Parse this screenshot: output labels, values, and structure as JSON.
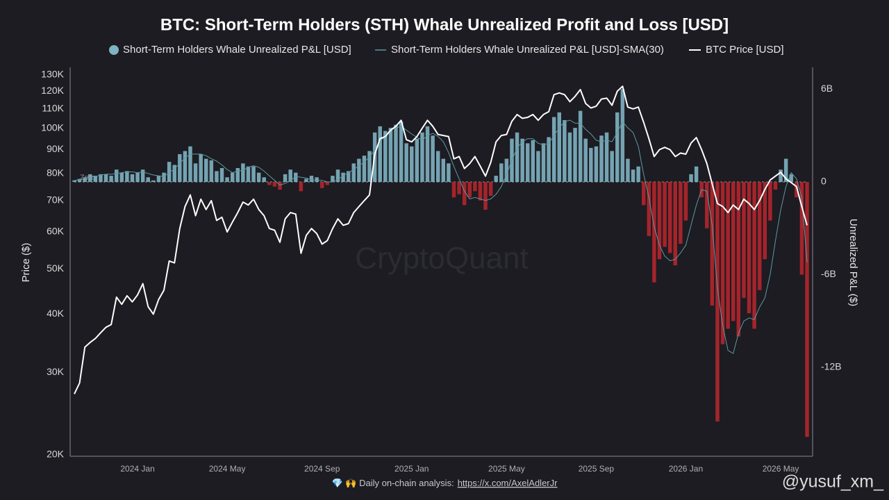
{
  "chart_data": {
    "type": "combo",
    "title": "BTC: Short-Term Holders (STH) Whale Unrealized Profit and Loss [USD]",
    "y_label": "Price ($)",
    "y2_label": "Unrealized P&L ($)",
    "zero_label": "Zero",
    "watermark": "CryptoQuant",
    "footer_text": "💎 🙌 Daily on-chain analysis:",
    "footer_link": "https://x.com/AxelAdlerJr",
    "overlay_handle": "@yusuf_xm_",
    "ylog": true,
    "grid": false,
    "legend": "top",
    "ylim": [
      20000,
      130000
    ],
    "yticks": [
      {
        "value": 20000,
        "label": "20K"
      },
      {
        "value": 30000,
        "label": "30K"
      },
      {
        "value": 40000,
        "label": "40K"
      },
      {
        "value": 50000,
        "label": "50K"
      },
      {
        "value": 60000,
        "label": "60K"
      },
      {
        "value": 70000,
        "label": "70K"
      },
      {
        "value": 80000,
        "label": "80K"
      },
      {
        "value": 90000,
        "label": "90K"
      },
      {
        "value": 100000,
        "label": "100K"
      },
      {
        "value": 110000,
        "label": "110K"
      },
      {
        "value": 120000,
        "label": "120K"
      },
      {
        "value": 130000,
        "label": "130K"
      }
    ],
    "y2lim": [
      -17.66,
      6.92
    ],
    "y2ticks": [
      {
        "value": 6,
        "label": "6B"
      },
      0,
      {
        "value": -6,
        "label": "-6B"
      },
      {
        "value": -12,
        "label": "-12B"
      }
    ],
    "categories": [
      null,
      null,
      null,
      null,
      null,
      null,
      null,
      null,
      null,
      null,
      null,
      null,
      "2024 Jan",
      null,
      null,
      null,
      null,
      null,
      null,
      null,
      null,
      null,
      null,
      null,
      null,
      null,
      null,
      null,
      null,
      "2024 May",
      null,
      null,
      null,
      null,
      null,
      null,
      null,
      null,
      null,
      null,
      null,
      null,
      null,
      null,
      null,
      null,
      null,
      "2024 Sep",
      null,
      null,
      null,
      null,
      null,
      null,
      null,
      null,
      null,
      null,
      null,
      null,
      null,
      null,
      null,
      null,
      "2025 Jan",
      null,
      null,
      null,
      null,
      null,
      null,
      null,
      null,
      null,
      null,
      null,
      null,
      null,
      null,
      null,
      null,
      null,
      "2025 May",
      null,
      null,
      null,
      null,
      null,
      null,
      null,
      null,
      null,
      null,
      null,
      null,
      null,
      null,
      null,
      null,
      "2025 Sep",
      null,
      null,
      null,
      null,
      null,
      null,
      null,
      null,
      null,
      null,
      null,
      null,
      null,
      null,
      null,
      null,
      "2026 Jan",
      null,
      null,
      null,
      null,
      null,
      null,
      null,
      null,
      null,
      null,
      null,
      null,
      null,
      null,
      null,
      null,
      null,
      "2026 May",
      null,
      null,
      null,
      null,
      null
    ],
    "series": [
      {
        "name": "Short-Term Holders Whale Unrealized P&L [USD]",
        "type": "bar",
        "axis": "y2",
        "color": "#7fb2c2",
        "negative_color": "#b5262c",
        "values": [
          0.1,
          0.2,
          0.3,
          0.5,
          0.4,
          0.5,
          0.5,
          0.4,
          0.8,
          0.6,
          0.7,
          0.5,
          0.6,
          0.8,
          0.3,
          0.1,
          0.4,
          0.6,
          1.3,
          1.1,
          1.8,
          2.0,
          2.3,
          1.2,
          1.8,
          1.5,
          1.4,
          0.7,
          0.9,
          0.3,
          0.6,
          0.9,
          1.2,
          1.0,
          1.0,
          0.6,
          0.3,
          -0.2,
          -0.3,
          -0.5,
          0.5,
          0.8,
          0.6,
          -0.6,
          0.2,
          0.4,
          0.3,
          -0.4,
          -0.2,
          0.4,
          0.8,
          0.6,
          0.7,
          1.2,
          1.5,
          1.7,
          2.0,
          3.2,
          3.6,
          3.3,
          3.5,
          3.7,
          3.9,
          2.5,
          2.3,
          2.8,
          3.2,
          3.6,
          3.0,
          2.0,
          1.5,
          1.2,
          -1.0,
          -0.8,
          -1.5,
          -1.0,
          -0.6,
          -1.2,
          -1.8,
          -0.9,
          0.4,
          1.2,
          1.5,
          2.8,
          3.2,
          2.8,
          2.5,
          2.7,
          2.0,
          2.5,
          2.9,
          4.2,
          4.5,
          4.0,
          3.2,
          3.5,
          4.6,
          2.8,
          2.2,
          2.3,
          3.0,
          3.2,
          2.0,
          4.5,
          6.0,
          1.5,
          0.8,
          1.0,
          -1.5,
          -3.5,
          -6.5,
          -5.0,
          -4.2,
          -4.6,
          -5.4,
          -4.0,
          -2.5,
          0.5,
          1.0,
          -1.0,
          -3.0,
          -8.0,
          -15.5,
          -10.5,
          -9.5,
          -9.0,
          -10.0,
          -7.5,
          -8.5,
          -9.5,
          -7.0,
          -5.0,
          -2.5,
          -0.5,
          0.8,
          1.5,
          0.5,
          -1.0,
          -6.0,
          -16.5
        ]
      },
      {
        "name": "Short-Term Holders Whale Unrealized P&L [USD]-SMA(30)",
        "type": "line",
        "axis": "y2",
        "color": "#5f9aa3",
        "values": [
          0.1,
          0.15,
          0.2,
          0.3,
          0.35,
          0.45,
          0.5,
          0.5,
          0.55,
          0.6,
          0.65,
          0.65,
          0.6,
          0.65,
          0.55,
          0.45,
          0.4,
          0.35,
          0.6,
          0.85,
          1.2,
          1.55,
          1.8,
          1.8,
          1.8,
          1.7,
          1.5,
          1.35,
          1.1,
          0.8,
          0.6,
          0.7,
          0.75,
          0.95,
          1.05,
          0.95,
          0.7,
          0.4,
          0.1,
          -0.2,
          -0.1,
          0.1,
          0.35,
          0.3,
          0.25,
          0.15,
          0.1,
          0.1,
          0.0,
          0.0,
          0.15,
          0.4,
          0.6,
          0.8,
          1.05,
          1.3,
          1.6,
          2.1,
          2.6,
          3.0,
          3.4,
          3.5,
          3.6,
          3.35,
          3.1,
          2.9,
          2.7,
          3.0,
          3.15,
          2.95,
          2.6,
          1.9,
          1.0,
          0.2,
          -0.6,
          -1.1,
          -1.0,
          -1.1,
          -1.2,
          -1.1,
          -0.8,
          -0.3,
          0.5,
          1.4,
          2.2,
          2.6,
          2.8,
          2.8,
          2.5,
          2.4,
          2.5,
          3.0,
          3.5,
          3.9,
          4.0,
          3.8,
          3.8,
          3.4,
          3.1,
          2.7,
          2.6,
          2.7,
          2.6,
          3.2,
          3.9,
          3.5,
          3.2,
          2.3,
          0.5,
          -1.0,
          -2.9,
          -4.1,
          -4.8,
          -5.1,
          -5.0,
          -4.6,
          -4.1,
          -2.8,
          -1.5,
          -0.5,
          -0.6,
          -2.8,
          -6.9,
          -9.3,
          -10.9,
          -11.1,
          -9.8,
          -9.0,
          -8.8,
          -8.9,
          -8.1,
          -7.5,
          -6.0,
          -3.8,
          -1.8,
          -0.3,
          0.6,
          0.2,
          -1.0,
          -5.2
        ]
      },
      {
        "name": "BTC Price [USD]",
        "type": "line",
        "axis": "y",
        "color": "#ffffff",
        "values": [
          27000,
          28500,
          34000,
          34800,
          35500,
          36500,
          37500,
          38000,
          43500,
          42000,
          43800,
          42500,
          44000,
          46500,
          41500,
          40000,
          43000,
          45000,
          52000,
          51500,
          61000,
          68000,
          72000,
          65000,
          70500,
          67000,
          70000,
          63500,
          64500,
          60000,
          63000,
          66000,
          69500,
          68500,
          70500,
          67000,
          65000,
          61000,
          60500,
          57000,
          64000,
          66000,
          65500,
          54000,
          59000,
          61000,
          59500,
          56500,
          57500,
          61000,
          64000,
          62000,
          62500,
          66000,
          68000,
          70000,
          72000,
          88000,
          95000,
          96000,
          99000,
          101000,
          104000,
          94500,
          93500,
          96000,
          100000,
          104000,
          101000,
          97000,
          96500,
          96000,
          86000,
          87000,
          82000,
          84000,
          87000,
          83000,
          79000,
          84500,
          93500,
          96500,
          97000,
          103500,
          107000,
          105000,
          105500,
          107000,
          104000,
          107000,
          108500,
          118000,
          119000,
          118000,
          114000,
          117000,
          121000,
          113000,
          110500,
          111500,
          115500,
          116000,
          112000,
          120000,
          123000,
          111000,
          110000,
          111000,
          103000,
          95000,
          87000,
          90000,
          91000,
          90000,
          87000,
          88500,
          88000,
          93000,
          95500,
          90000,
          84000,
          76000,
          69000,
          68000,
          66000,
          68500,
          67000,
          70500,
          69000,
          67000,
          70000,
          74000,
          77500,
          79000,
          80500,
          78000,
          76500,
          75000,
          68000,
          62000
        ]
      }
    ]
  }
}
